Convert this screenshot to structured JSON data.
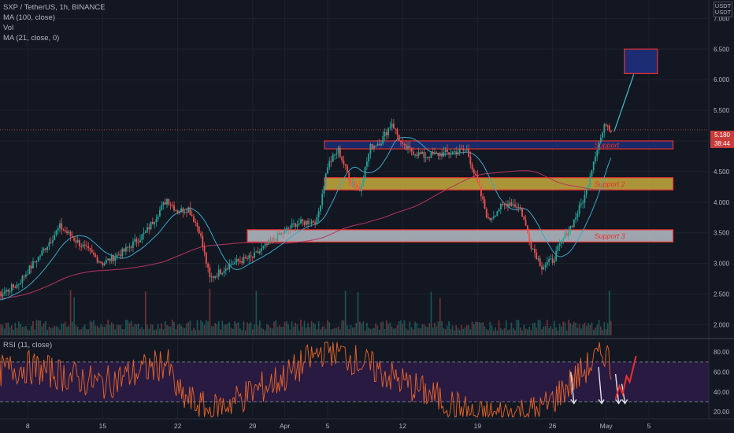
{
  "legend": {
    "symbol": "SXP / TetherUS, 1h, BINANCE",
    "ma100": "MA (100, close)",
    "vol": "Vol",
    "ma21": "MA (21, close, 0)"
  },
  "rsi_label": "RSI (11, close)",
  "currency": {
    "line1": "USDT",
    "line2": "USDT"
  },
  "last_price": "5.180",
  "countdown": "38:44",
  "colors": {
    "background": "#131722",
    "up": "#26a69a",
    "down": "#ef5350",
    "ma100": "#b7345b",
    "ma21": "#3aa7c8",
    "rsi_line": "#e8652a",
    "rsi_band": "#2b1b45",
    "zone_border": "#e8312e",
    "resistance_zone": "#1c2d73",
    "support_zone": "#c7ac3d",
    "target_zone": "#1c2d73"
  },
  "chart_data": [
    {
      "type": "candlestick",
      "symbol": "SXP / TetherUS",
      "interval": "1h",
      "exchange": "BINANCE",
      "ylim": [
        1.8,
        7.3
      ],
      "y_ticks": [
        "7.000",
        "6.500",
        "6.000",
        "5.500",
        "5.000",
        "4.500",
        "4.000",
        "3.500",
        "3.000",
        "2.500",
        "2.000"
      ],
      "x_ticks": [
        "8",
        "15",
        "22",
        "29",
        "Apr",
        "5",
        "12",
        "19",
        "26",
        "May",
        "5"
      ],
      "price_path": [
        {
          "date": "Mar 1",
          "price": 2.55
        },
        {
          "date": "Mar 3",
          "price": 2.35
        },
        {
          "date": "Mar 5",
          "price": 2.45
        },
        {
          "date": "Mar 7",
          "price": 2.65
        },
        {
          "date": "Mar 9",
          "price": 3.1
        },
        {
          "date": "Mar 11",
          "price": 3.6
        },
        {
          "date": "Mar 13",
          "price": 3.3
        },
        {
          "date": "Mar 15",
          "price": 3.0
        },
        {
          "date": "Mar 17",
          "price": 3.2
        },
        {
          "date": "Mar 19",
          "price": 3.5
        },
        {
          "date": "Mar 21",
          "price": 4.05
        },
        {
          "date": "Mar 22",
          "price": 3.85
        },
        {
          "date": "Mar 23",
          "price": 3.9
        },
        {
          "date": "Mar 24",
          "price": 3.55
        },
        {
          "date": "Mar 25",
          "price": 2.75
        },
        {
          "date": "Mar 27",
          "price": 3.0
        },
        {
          "date": "Mar 29",
          "price": 3.1
        },
        {
          "date": "Mar 31",
          "price": 3.4
        },
        {
          "date": "Apr 2",
          "price": 3.65
        },
        {
          "date": "Apr 4",
          "price": 3.7
        },
        {
          "date": "Apr 5",
          "price": 4.6
        },
        {
          "date": "Apr 6",
          "price": 4.85
        },
        {
          "date": "Apr 7",
          "price": 4.4
        },
        {
          "date": "Apr 8",
          "price": 4.2
        },
        {
          "date": "Apr 9",
          "price": 4.9
        },
        {
          "date": "Apr 10",
          "price": 5.0
        },
        {
          "date": "Apr 11",
          "price": 5.3
        },
        {
          "date": "Apr 12",
          "price": 4.9
        },
        {
          "date": "Apr 14",
          "price": 4.75
        },
        {
          "date": "Apr 16",
          "price": 4.8
        },
        {
          "date": "Apr 18",
          "price": 4.85
        },
        {
          "date": "Apr 19",
          "price": 4.3
        },
        {
          "date": "Apr 20",
          "price": 3.7
        },
        {
          "date": "Apr 21",
          "price": 3.9
        },
        {
          "date": "Apr 22",
          "price": 4.0
        },
        {
          "date": "Apr 23",
          "price": 3.9
        },
        {
          "date": "Apr 24",
          "price": 3.3
        },
        {
          "date": "Apr 25",
          "price": 2.95
        },
        {
          "date": "Apr 26",
          "price": 3.05
        },
        {
          "date": "Apr 27",
          "price": 3.4
        },
        {
          "date": "Apr 28",
          "price": 3.7
        },
        {
          "date": "Apr 29",
          "price": 4.1
        },
        {
          "date": "Apr 30",
          "price": 4.8
        },
        {
          "date": "May 1",
          "price": 5.3
        },
        {
          "date": "May 1",
          "price": 5.15
        }
      ],
      "horizontal_zones": [
        {
          "label": "Support",
          "low": 4.87,
          "high": 5.0,
          "fill": "resistance_zone"
        },
        {
          "label": "Support 2",
          "low": 4.2,
          "high": 4.4,
          "fill": "support_zone"
        },
        {
          "label": "Support 3",
          "low": 3.35,
          "high": 3.55,
          "fill": "#b9bec7"
        }
      ],
      "target_zone": {
        "low": 6.1,
        "high": 6.5
      },
      "last_price_label": "5.180",
      "indicators": [
        "MA (100, close)",
        "MA (21, close, 0)",
        "Vol"
      ]
    },
    {
      "type": "line",
      "name": "RSI (11, close)",
      "ylim": [
        13,
        92
      ],
      "y_ticks": [
        "80.00",
        "60.00",
        "40.00",
        "20.00"
      ],
      "upper_band": 70,
      "lower_band": 30,
      "path": [
        {
          "date": "Mar 1",
          "rsi": 55
        },
        {
          "date": "Mar 8",
          "rsi": 65
        },
        {
          "date": "Mar 15",
          "rsi": 48
        },
        {
          "date": "Mar 21",
          "rsi": 70
        },
        {
          "date": "Mar 22",
          "rsi": 38
        },
        {
          "date": "Mar 25",
          "rsi": 20
        },
        {
          "date": "Apr 1",
          "rsi": 55
        },
        {
          "date": "Apr 5",
          "rsi": 85
        },
        {
          "date": "Apr 12",
          "rsi": 50
        },
        {
          "date": "Apr 19",
          "rsi": 15
        },
        {
          "date": "Apr 25",
          "rsi": 22
        },
        {
          "date": "May 1",
          "rsi": 82
        },
        {
          "date": "May 1",
          "rsi": 55
        }
      ],
      "annotations": [
        "down arrows at peaks",
        "projected rise"
      ]
    }
  ]
}
